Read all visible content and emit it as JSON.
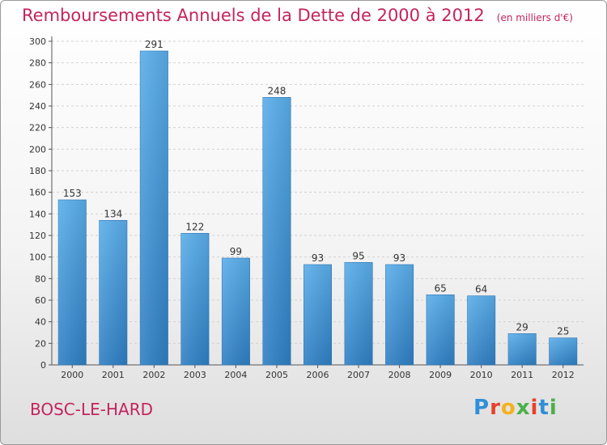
{
  "chart_data": {
    "type": "bar",
    "title": "Remboursements Annuels de la Dette de 2000 à 2012",
    "subtitle": "(en milliers d'€)",
    "categories": [
      "2000",
      "2001",
      "2002",
      "2003",
      "2004",
      "2005",
      "2006",
      "2007",
      "2008",
      "2009",
      "2010",
      "2011",
      "2012"
    ],
    "values": [
      153,
      134,
      291,
      122,
      99,
      248,
      93,
      95,
      93,
      65,
      64,
      29,
      25
    ],
    "ylim": [
      0,
      300
    ],
    "yticks": [
      0,
      20,
      40,
      60,
      80,
      100,
      120,
      140,
      160,
      180,
      200,
      220,
      240,
      260,
      280,
      300
    ],
    "xlabel": "",
    "ylabel": "",
    "grid": true,
    "bar_color": "#4f9edf"
  },
  "place": "BOSC-LE-HARD",
  "logo": {
    "letters": [
      "P",
      "r",
      "o",
      "x",
      "i",
      "t",
      "i"
    ],
    "colors": [
      "#2f8fd8",
      "#e8412c",
      "#f3b11b",
      "#4bb04a",
      "#e8412c",
      "#2f8fd8",
      "#4bb04a"
    ]
  }
}
